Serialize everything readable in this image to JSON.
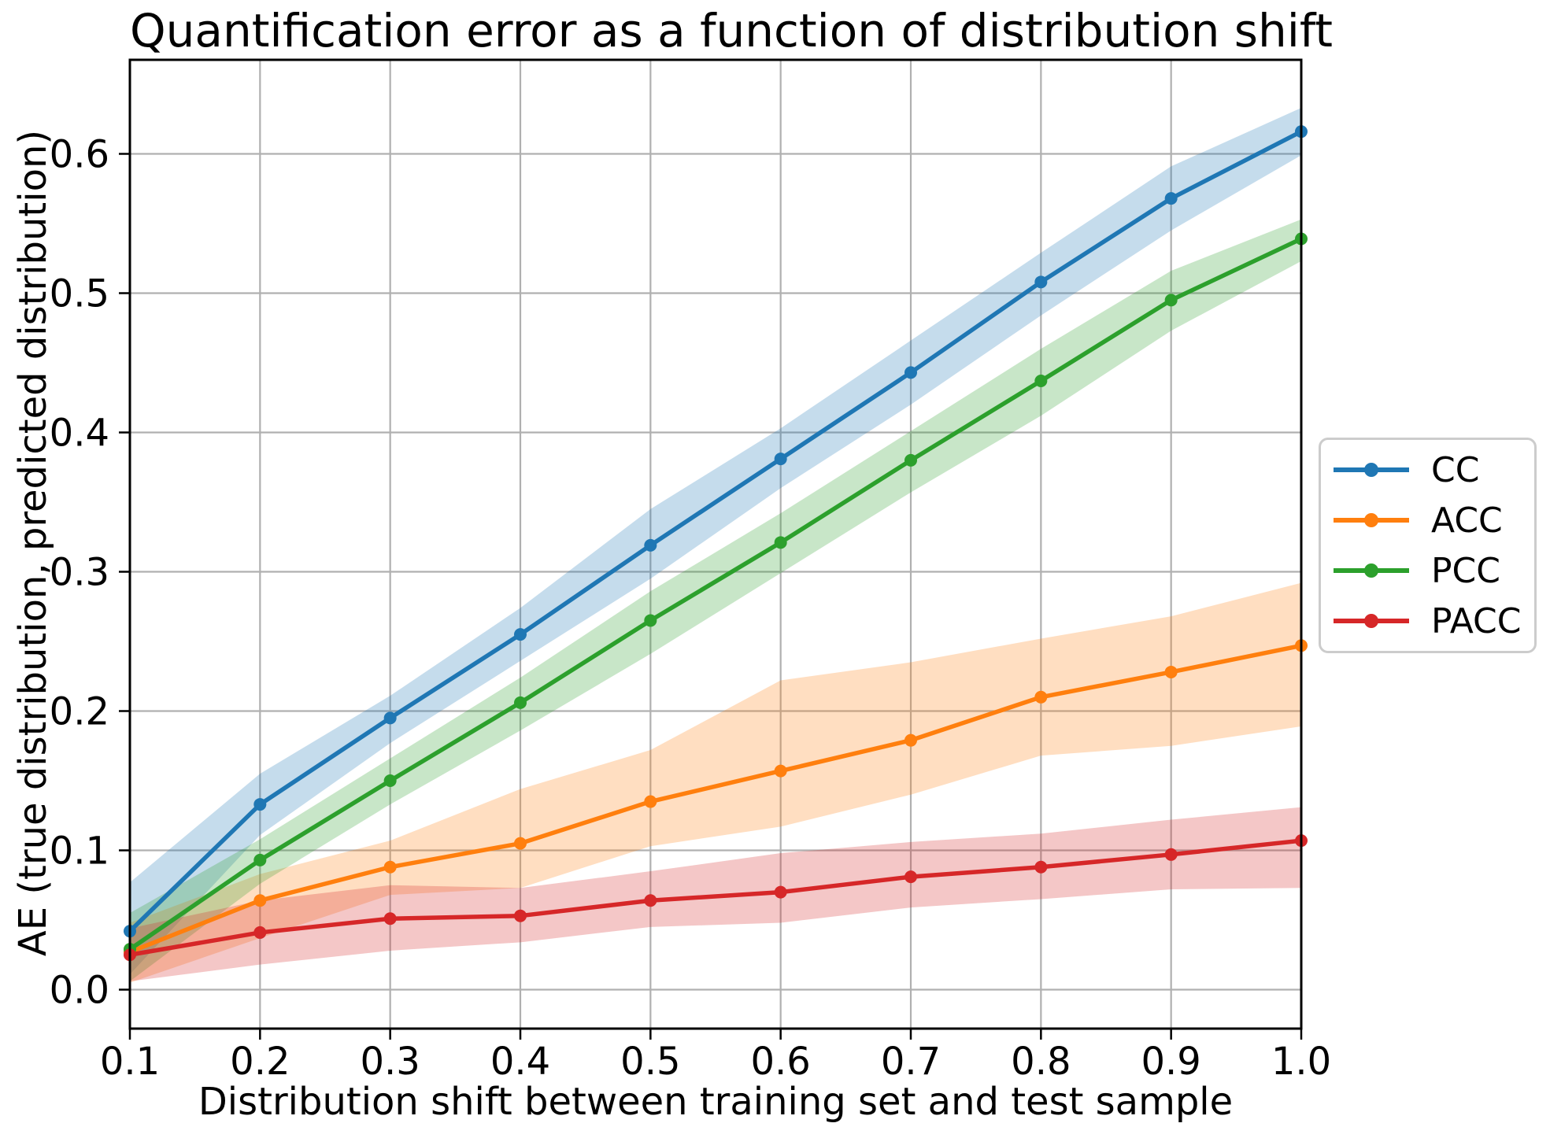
{
  "title": "Quantification error as a function of distribution shift",
  "xlabel": "Distribution shift between training set and test sample",
  "ylabel": "AE (true distribution, predicted distribution)",
  "colors": {
    "spine": "#000000",
    "grid": "#b0b0b0",
    "text": "#000000",
    "legend_border": "#cccccc",
    "background": "#ffffff"
  },
  "chart_data": {
    "type": "line",
    "x": [
      0.1,
      0.2,
      0.3,
      0.4,
      0.5,
      0.6,
      0.7,
      0.8,
      0.9,
      1.0
    ],
    "x_tick_labels": [
      "0.1",
      "0.2",
      "0.3",
      "0.4",
      "0.5",
      "0.6",
      "0.7",
      "0.8",
      "0.9",
      "1.0"
    ],
    "y_ticks": [
      0.0,
      0.1,
      0.2,
      0.3,
      0.4,
      0.5,
      0.6
    ],
    "y_tick_labels": [
      "0.0",
      "0.1",
      "0.2",
      "0.3",
      "0.4",
      "0.5",
      "0.6"
    ],
    "xlim": [
      0.1,
      1.0
    ],
    "ylim": [
      -0.028,
      0.667
    ],
    "grid": true,
    "legend_position": "outside-right",
    "band_opacity": 0.26,
    "series": [
      {
        "name": "CC",
        "color": "#1f77b4",
        "values": [
          0.042,
          0.133,
          0.195,
          0.255,
          0.319,
          0.381,
          0.443,
          0.508,
          0.568,
          0.616
        ],
        "band_low": [
          0.011,
          0.111,
          0.177,
          0.236,
          0.295,
          0.36,
          0.42,
          0.484,
          0.545,
          0.599
        ],
        "band_high": [
          0.077,
          0.155,
          0.211,
          0.274,
          0.345,
          0.403,
          0.466,
          0.529,
          0.591,
          0.633
        ]
      },
      {
        "name": "ACC",
        "color": "#ff7f0e",
        "values": [
          0.027,
          0.064,
          0.088,
          0.105,
          0.135,
          0.157,
          0.179,
          0.21,
          0.228,
          0.247
        ],
        "band_low": [
          0.005,
          0.037,
          0.068,
          0.073,
          0.103,
          0.117,
          0.14,
          0.168,
          0.175,
          0.189
        ],
        "band_high": [
          0.048,
          0.083,
          0.107,
          0.144,
          0.172,
          0.222,
          0.235,
          0.252,
          0.268,
          0.292
        ]
      },
      {
        "name": "PCC",
        "color": "#2ca02c",
        "values": [
          0.029,
          0.093,
          0.15,
          0.206,
          0.265,
          0.321,
          0.38,
          0.437,
          0.495,
          0.539
        ],
        "band_low": [
          0.006,
          0.076,
          0.133,
          0.186,
          0.241,
          0.299,
          0.357,
          0.412,
          0.473,
          0.523
        ],
        "band_high": [
          0.055,
          0.108,
          0.166,
          0.224,
          0.286,
          0.342,
          0.401,
          0.46,
          0.516,
          0.553
        ]
      },
      {
        "name": "PACC",
        "color": "#d62728",
        "values": [
          0.025,
          0.041,
          0.051,
          0.053,
          0.064,
          0.07,
          0.081,
          0.088,
          0.097,
          0.107
        ],
        "band_low": [
          0.006,
          0.018,
          0.028,
          0.034,
          0.045,
          0.048,
          0.059,
          0.065,
          0.072,
          0.073
        ],
        "band_high": [
          0.044,
          0.064,
          0.075,
          0.073,
          0.085,
          0.098,
          0.106,
          0.112,
          0.122,
          0.131
        ]
      }
    ]
  }
}
